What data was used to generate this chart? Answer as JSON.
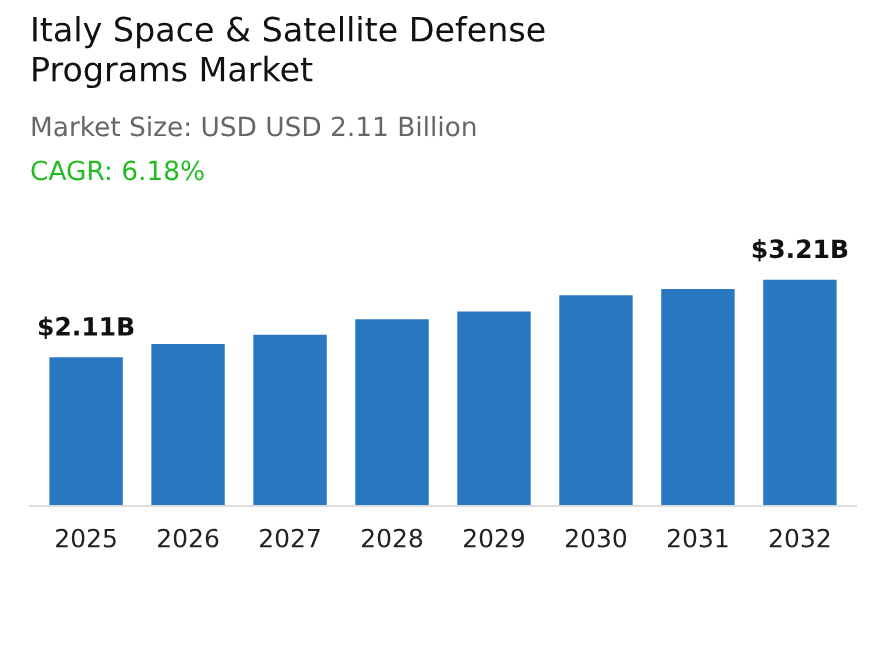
{
  "chart_data": {
    "type": "bar",
    "title": "Italy Space & Satellite Defense\nPrograms Market",
    "subtitle": "Market Size: USD USD 2.11 Billion",
    "annotations": [
      "CAGR: 6.18%"
    ],
    "categories": [
      "2025",
      "2026",
      "2027",
      "2028",
      "2029",
      "2030",
      "2031",
      "2032"
    ],
    "values": [
      2.11,
      2.3,
      2.43,
      2.65,
      2.76,
      2.99,
      3.08,
      3.21
    ],
    "value_labels": [
      "$2.11B",
      null,
      null,
      null,
      null,
      null,
      null,
      "$3.21B"
    ],
    "color": "#2b78c2",
    "grid": false,
    "legend": false,
    "tick_labels": "x"
  }
}
